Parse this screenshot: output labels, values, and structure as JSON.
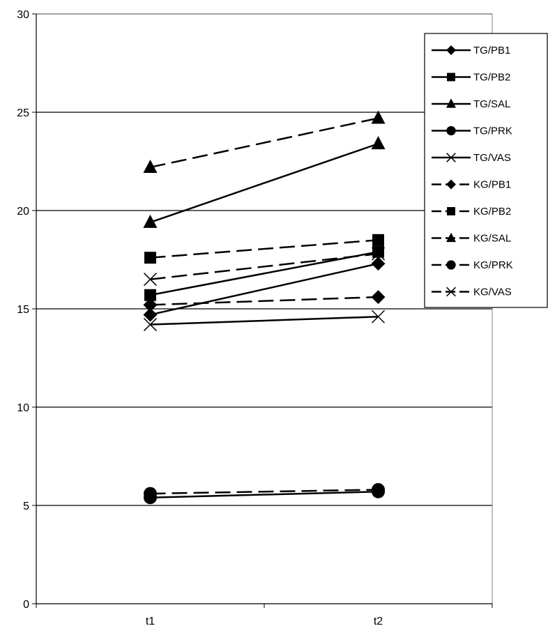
{
  "chart_data": {
    "type": "line",
    "categories": [
      "t1",
      "t2"
    ],
    "ylim": [
      0,
      30
    ],
    "yticks": [
      "0",
      "5",
      "10",
      "15",
      "20",
      "25",
      "30"
    ],
    "grid": "horizontal",
    "legend_placement": "right",
    "series": [
      {
        "name": "TG/PB1",
        "values": [
          14.7,
          17.3
        ],
        "marker": "diamond",
        "dash": "solid"
      },
      {
        "name": "TG/PB2",
        "values": [
          15.7,
          17.9
        ],
        "marker": "square",
        "dash": "solid"
      },
      {
        "name": "TG/SAL",
        "values": [
          19.4,
          23.4
        ],
        "marker": "triangle",
        "dash": "solid"
      },
      {
        "name": "TG/PRK",
        "values": [
          5.4,
          5.7
        ],
        "marker": "circle",
        "dash": "solid"
      },
      {
        "name": "TG/VAS",
        "values": [
          14.2,
          14.6
        ],
        "marker": "x",
        "dash": "solid"
      },
      {
        "name": "KG/PB1",
        "values": [
          15.2,
          15.6
        ],
        "marker": "diamond",
        "dash": "dashed"
      },
      {
        "name": "KG/PB2",
        "values": [
          17.6,
          18.5
        ],
        "marker": "square",
        "dash": "dashed"
      },
      {
        "name": "KG/SAL",
        "values": [
          22.2,
          24.7
        ],
        "marker": "triangle",
        "dash": "dashed"
      },
      {
        "name": "KG/PRK",
        "values": [
          5.6,
          5.8
        ],
        "marker": "circle",
        "dash": "dashed"
      },
      {
        "name": "KG/VAS",
        "values": [
          16.5,
          17.8
        ],
        "marker": "x",
        "dash": "dashed"
      }
    ]
  }
}
